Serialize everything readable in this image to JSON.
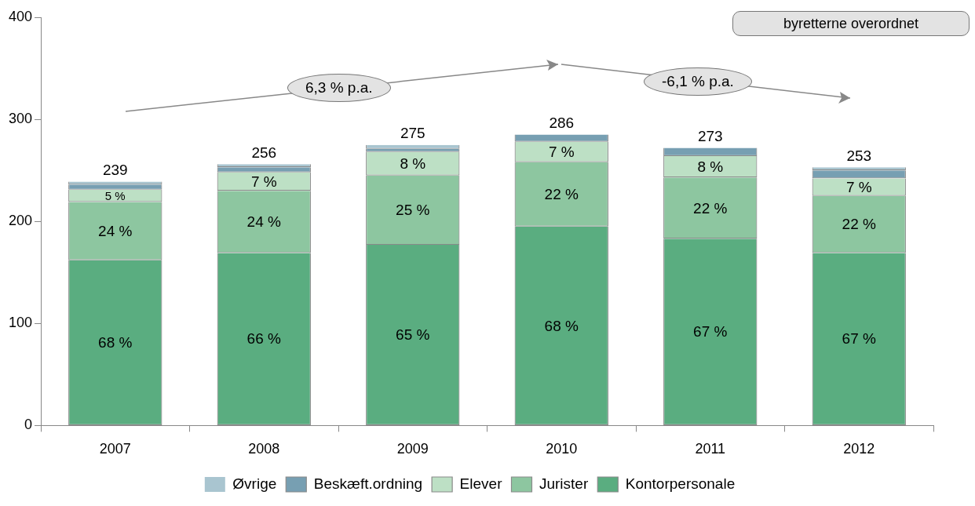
{
  "chart_data": {
    "type": "bar",
    "stacked": true,
    "categories": [
      "2007",
      "2008",
      "2009",
      "2010",
      "2011",
      "2012"
    ],
    "series": [
      {
        "name": "Kontorpersonale",
        "color": "#5aad80",
        "values": [
          162,
          169,
          177,
          195,
          183,
          169
        ]
      },
      {
        "name": "Jurister",
        "color": "#8dc6a0",
        "values": [
          57,
          61,
          68,
          63,
          60,
          56
        ]
      },
      {
        "name": "Elever",
        "color": "#bde0c5",
        "values": [
          12,
          18,
          23,
          20,
          21,
          17
        ]
      },
      {
        "name": "Beskæft.ordning",
        "color": "#779fb2",
        "values": [
          5,
          5,
          3,
          7,
          8,
          8
        ]
      },
      {
        "name": "Øvrige",
        "color": "#a9c5d0",
        "values": [
          3,
          3,
          4,
          null,
          null,
          3
        ]
      }
    ],
    "totals": [
      "239",
      "256",
      "275",
      "286",
      "273",
      "253"
    ],
    "ylim": [
      0,
      400
    ],
    "yticks": [
      0,
      100,
      200,
      300,
      400
    ],
    "grid": false,
    "legend": "bottom",
    "annotations": [
      "6,3 % p.a.",
      "-6,1 % p.a.",
      "byretterne overordnet",
      "68 %",
      "66 %",
      "65 %",
      "68 %",
      "67 %",
      "67 %",
      "24 %",
      "24 %",
      "25 %",
      "22 %",
      "22 %",
      "22 %",
      "5 %",
      "7 %",
      "8 %",
      "7 %",
      "8 %",
      "7 %"
    ]
  }
}
